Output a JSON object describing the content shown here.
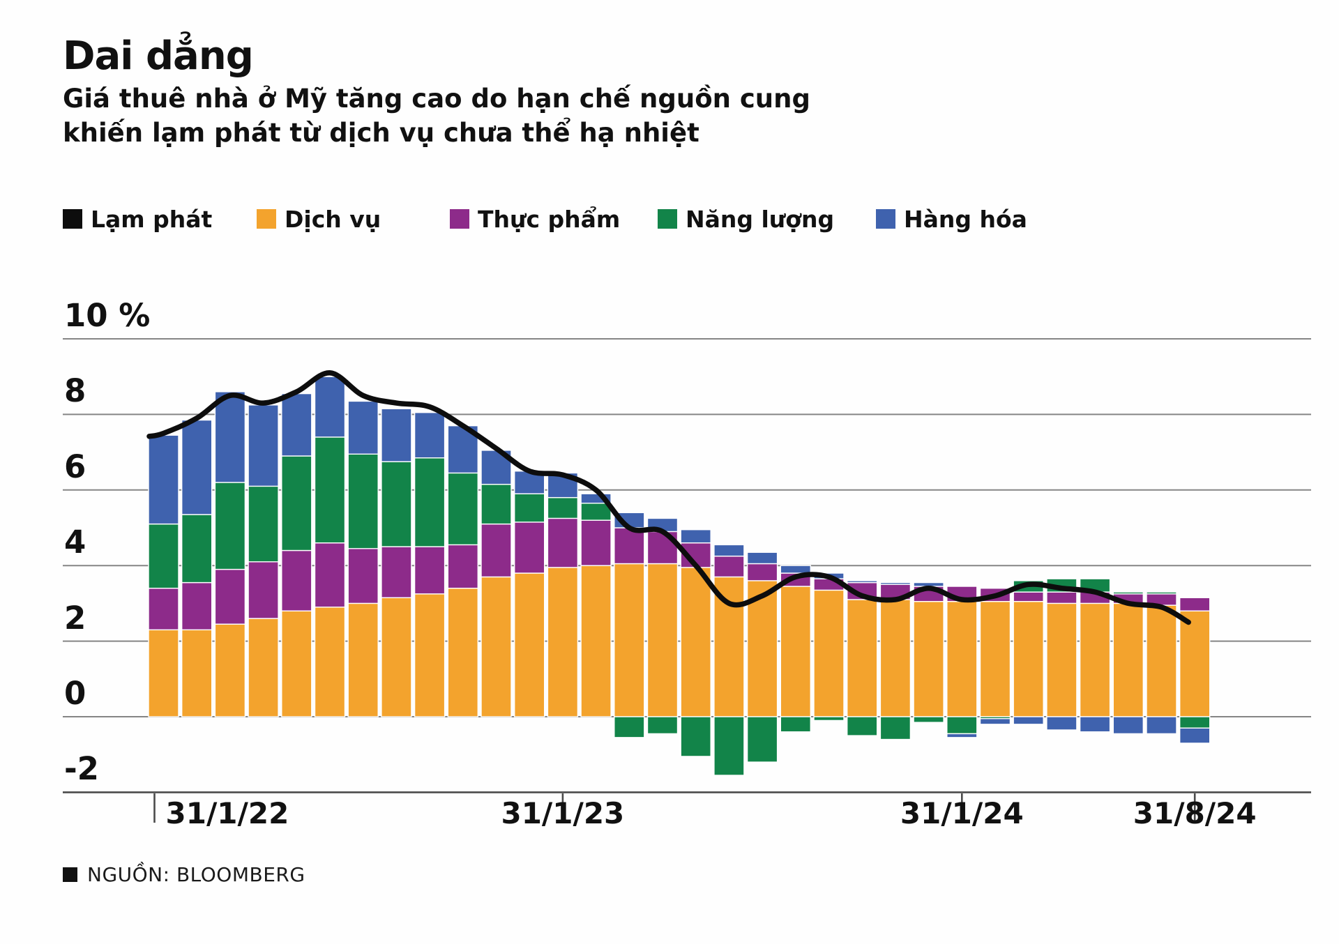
{
  "header": {
    "title": "Dai dẳng",
    "subtitle_line1": "Giá thuê nhà ở Mỹ tăng cao do hạn chế nguồn cung",
    "subtitle_line2": "khiến lạm phát từ dịch vụ chưa thể hạ nhiệt"
  },
  "legend": {
    "items": [
      {
        "label": "Lạm phát",
        "color": "#0d0d0d",
        "kind": "line"
      },
      {
        "label": "Dịch vụ",
        "color": "#f3a32d",
        "kind": "bar"
      },
      {
        "label": "Thực phẩm",
        "color": "#8d2b8a",
        "kind": "bar"
      },
      {
        "label": "Năng lượng",
        "color": "#128449",
        "kind": "bar"
      },
      {
        "label": "Hàng hóa",
        "color": "#3f62ae",
        "kind": "bar"
      }
    ]
  },
  "source": {
    "label": "NGUỒN: BLOOMBERG"
  },
  "chart_data": {
    "type": "bar",
    "subtype": "stacked-bars-with-line",
    "unit": "percentage points, contribution to US CPI YoY",
    "categories": [
      "1/22",
      "2/22",
      "3/22",
      "4/22",
      "5/22",
      "6/22",
      "7/22",
      "8/22",
      "9/22",
      "10/22",
      "11/22",
      "12/22",
      "1/23",
      "2/23",
      "3/23",
      "4/23",
      "5/23",
      "6/23",
      "7/23",
      "8/23",
      "9/23",
      "10/23",
      "11/23",
      "12/23",
      "1/24",
      "2/24",
      "3/24",
      "4/24",
      "5/24",
      "6/24",
      "7/24",
      "8/24"
    ],
    "series": [
      {
        "name": "Dịch vụ",
        "color": "#f3a32d",
        "values": [
          2.3,
          2.3,
          2.45,
          2.6,
          2.8,
          2.9,
          3.0,
          3.15,
          3.25,
          3.4,
          3.7,
          3.8,
          3.95,
          4.0,
          4.05,
          4.05,
          3.95,
          3.7,
          3.6,
          3.45,
          3.35,
          3.1,
          3.1,
          3.05,
          3.05,
          3.05,
          3.05,
          3.0,
          3.0,
          3.0,
          2.95,
          2.8
        ]
      },
      {
        "name": "Thực phẩm",
        "color": "#8d2b8a",
        "values": [
          1.1,
          1.25,
          1.45,
          1.5,
          1.6,
          1.7,
          1.45,
          1.35,
          1.25,
          1.15,
          1.4,
          1.35,
          1.3,
          1.2,
          0.95,
          0.85,
          0.65,
          0.55,
          0.45,
          0.35,
          0.3,
          0.45,
          0.4,
          0.4,
          0.4,
          0.35,
          0.25,
          0.3,
          0.3,
          0.25,
          0.3,
          0.35
        ]
      },
      {
        "name": "Năng lượng",
        "color": "#128449",
        "values": [
          1.7,
          1.8,
          2.3,
          2.0,
          2.5,
          2.8,
          2.5,
          2.25,
          2.35,
          1.9,
          1.05,
          0.75,
          0.55,
          0.45,
          -0.55,
          -0.45,
          -1.05,
          -1.55,
          -1.2,
          -0.4,
          -0.1,
          -0.5,
          -0.6,
          -0.15,
          -0.45,
          -0.05,
          0.3,
          0.35,
          0.35,
          0.05,
          0.05,
          -0.3
        ]
      },
      {
        "name": "Hàng hóa",
        "color": "#3f62ae",
        "values": [
          2.35,
          2.5,
          2.4,
          2.15,
          1.65,
          1.6,
          1.4,
          1.4,
          1.2,
          1.25,
          0.9,
          0.6,
          0.65,
          0.25,
          0.4,
          0.35,
          0.35,
          0.3,
          0.3,
          0.2,
          0.15,
          0.05,
          0.05,
          0.1,
          -0.1,
          -0.15,
          -0.2,
          -0.35,
          -0.4,
          -0.45,
          -0.45,
          -0.4
        ]
      }
    ],
    "line_series": {
      "name": "Lạm phát",
      "color": "#0d0d0d",
      "values": [
        7.5,
        7.9,
        8.5,
        8.3,
        8.6,
        9.1,
        8.5,
        8.3,
        8.2,
        7.7,
        7.1,
        6.5,
        6.4,
        6.0,
        5.0,
        4.9,
        4.0,
        3.0,
        3.2,
        3.7,
        3.7,
        3.2,
        3.1,
        3.4,
        3.1,
        3.2,
        3.5,
        3.4,
        3.3,
        3.0,
        2.9,
        2.5
      ]
    },
    "y_axis": {
      "ticks": [
        {
          "label": "10 %",
          "value": 10
        },
        {
          "label": "8",
          "value": 8
        },
        {
          "label": "6",
          "value": 6
        },
        {
          "label": "4",
          "value": 4
        },
        {
          "label": "2",
          "value": 2
        },
        {
          "label": "0",
          "value": 0
        },
        {
          "label": "-2",
          "value": -2
        }
      ]
    },
    "x_axis": {
      "tick_labels": [
        {
          "label": "31/1/22",
          "month_index": 0,
          "align": "left"
        },
        {
          "label": "31/1/23",
          "month_index": 12,
          "align": "center"
        },
        {
          "label": "31/1/24",
          "month_index": 24,
          "align": "center"
        },
        {
          "label": "31/8/24",
          "month_index": 31,
          "align": "center"
        }
      ]
    },
    "ylim": [
      -2,
      10
    ],
    "grid": true,
    "legend_position": "top",
    "grid_color": "#858585",
    "axis_color": "#4a4a4a"
  }
}
